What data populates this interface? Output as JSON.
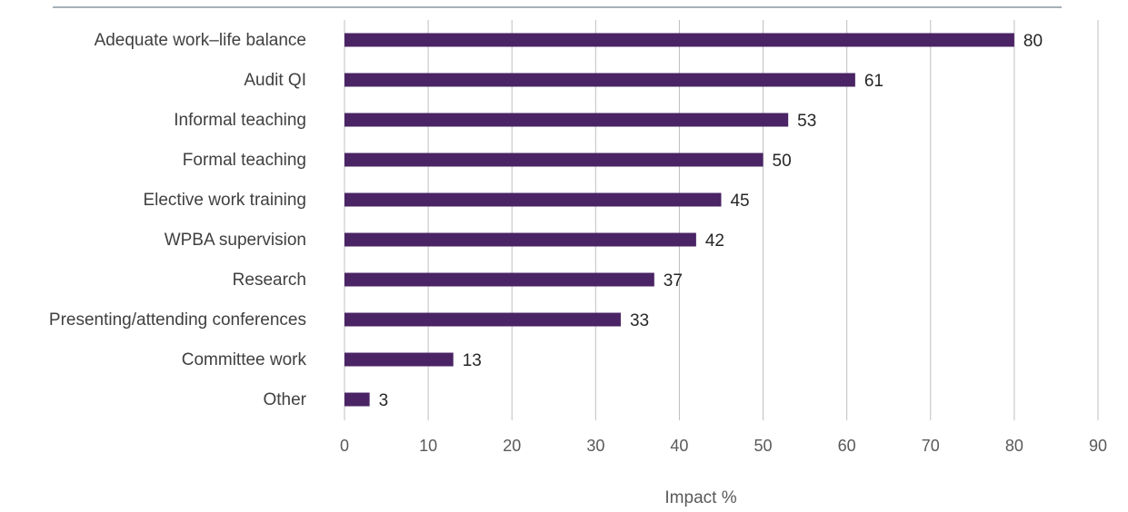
{
  "chart_data": {
    "type": "bar",
    "orientation": "horizontal",
    "categories": [
      "Adequate work–life balance",
      "Audit QI",
      "Informal teaching",
      "Formal teaching",
      "Elective work training",
      "WPBA supervision",
      "Research",
      "Presenting/attending conferences",
      "Committee work",
      "Other"
    ],
    "values": [
      80,
      61,
      53,
      50,
      45,
      42,
      37,
      33,
      13,
      3
    ],
    "data_labels": [
      "80",
      "61",
      "53",
      "50",
      "45",
      "42",
      "37",
      "33",
      "13",
      "3"
    ],
    "xlabel": "Impact %",
    "ylabel": "",
    "xlim": [
      0,
      90
    ],
    "x_ticks": [
      "0",
      "10",
      "20",
      "30",
      "40",
      "50",
      "60",
      "70",
      "80",
      "90"
    ],
    "grid": "vertical",
    "legend": "none",
    "colors": {
      "bar": "#4a2465",
      "grid": "#bfbfbf",
      "top_rule": "#a6b0b6"
    }
  }
}
